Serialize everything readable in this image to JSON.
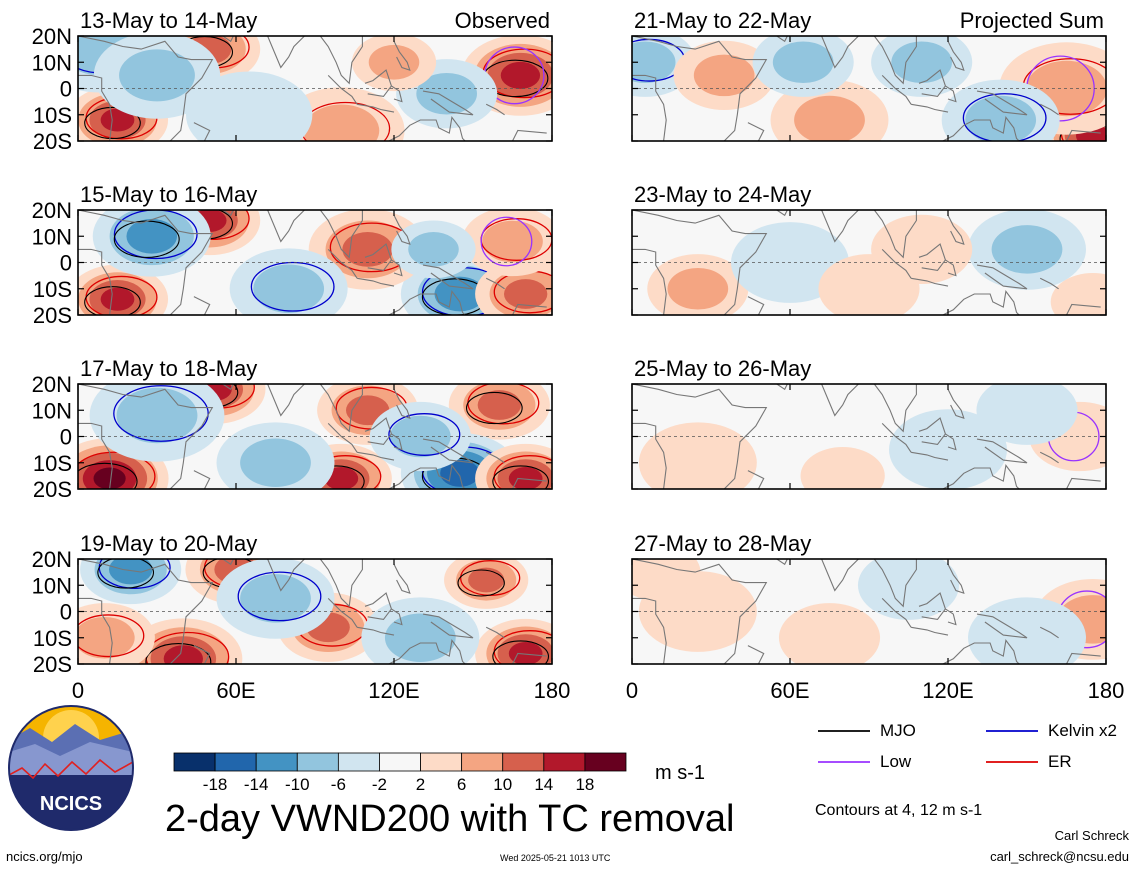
{
  "figure": {
    "title": "2-day VWND200 with TC removal",
    "units": "m s-1",
    "contours_note": "Contours at 4, 12 m s-1",
    "footer_left": "ncics.org/mjo",
    "footer_timestamp": "Wed 2025-05-21 1013 UTC",
    "author_name": "Carl Schreck",
    "author_email": "carl_schreck@ncsu.edu",
    "logo_text": "NCICS"
  },
  "colors": {
    "colorbar": [
      "#08306b",
      "#2166ac",
      "#4393c3",
      "#92c5de",
      "#d1e5f0",
      "#f7f7f7",
      "#fddbc7",
      "#f4a582",
      "#d6604d",
      "#b2182b",
      "#67001f"
    ],
    "mjo": "#000000",
    "kelvin": "#0000cc",
    "low": "#9933ff",
    "er": "#dd0000",
    "land": "#777777",
    "equator": "#555555"
  },
  "chart_data": {
    "type": "heatmap",
    "variable": "VWND200",
    "x_ticks": [
      "0",
      "60E",
      "120E",
      "180"
    ],
    "y_ticks": [
      "20N",
      "10N",
      "0",
      "10S",
      "20S"
    ],
    "xlim": [
      0,
      180
    ],
    "ylim": [
      -20,
      20
    ],
    "colorbar_levels": [
      -18,
      -14,
      -10,
      -6,
      -2,
      2,
      6,
      10,
      14,
      18
    ],
    "colorbar_labels": [
      "-18",
      "-14",
      "-10",
      "-6",
      "-2",
      "2",
      "6",
      "10",
      "14",
      "18"
    ],
    "contour_levels": [
      4,
      12
    ],
    "legend": [
      {
        "label": "MJO",
        "color": "#000000"
      },
      {
        "label": "Kelvin x2",
        "color": "#0000cc"
      },
      {
        "label": "Low",
        "color": "#9933ff"
      },
      {
        "label": "ER",
        "color": "#dd0000"
      }
    ],
    "columns": [
      {
        "header": "Observed",
        "panels": [
          "13-May to 14-May",
          "15-May to 16-May",
          "17-May to 18-May",
          "19-May to 20-May"
        ]
      },
      {
        "header": "Projected Sum",
        "panels": [
          "21-May to 22-May",
          "23-May to 24-May",
          "25-May to 26-May",
          "27-May to 28-May"
        ]
      }
    ],
    "fields": [
      [
        {
          "lon": 15,
          "lat": -12,
          "value": 14,
          "r": 12
        },
        {
          "lon": 50,
          "lat": 15,
          "value": 12,
          "r": 12
        },
        {
          "lon": 8,
          "lat": 15,
          "value": -8,
          "r": 15
        },
        {
          "lon": 100,
          "lat": -16,
          "value": 8,
          "r": 15
        },
        {
          "lon": 168,
          "lat": 5,
          "value": 14,
          "r": 14
        },
        {
          "lon": 140,
          "lat": -2,
          "value": -6,
          "r": 12
        },
        {
          "lon": 30,
          "lat": 5,
          "value": -6,
          "r": 15
        },
        {
          "lon": 120,
          "lat": 10,
          "value": 6,
          "r": 10
        },
        {
          "lon": 65,
          "lat": -10,
          "value": -4,
          "r": 15
        }
      ],
      [
        {
          "lon": 15,
          "lat": -14,
          "value": 16,
          "r": 12
        },
        {
          "lon": 50,
          "lat": 16,
          "value": 16,
          "r": 12
        },
        {
          "lon": 28,
          "lat": 10,
          "value": -12,
          "r": 14
        },
        {
          "lon": 145,
          "lat": -12,
          "value": -12,
          "r": 14
        },
        {
          "lon": 170,
          "lat": -12,
          "value": 10,
          "r": 12
        },
        {
          "lon": 110,
          "lat": 5,
          "value": 10,
          "r": 14
        },
        {
          "lon": 165,
          "lat": 8,
          "value": 8,
          "r": 12
        },
        {
          "lon": 80,
          "lat": -10,
          "value": -8,
          "r": 14
        },
        {
          "lon": 135,
          "lat": 5,
          "value": -6,
          "r": 10
        }
      ],
      [
        {
          "lon": 12,
          "lat": -16,
          "value": 18,
          "r": 14
        },
        {
          "lon": 52,
          "lat": 18,
          "value": 16,
          "r": 12
        },
        {
          "lon": 110,
          "lat": 10,
          "value": 10,
          "r": 12
        },
        {
          "lon": 160,
          "lat": 12,
          "value": 12,
          "r": 12
        },
        {
          "lon": 145,
          "lat": -14,
          "value": -14,
          "r": 14
        },
        {
          "lon": 100,
          "lat": -16,
          "value": 14,
          "r": 12
        },
        {
          "lon": 170,
          "lat": -16,
          "value": 14,
          "r": 12
        },
        {
          "lon": 30,
          "lat": 8,
          "value": -8,
          "r": 16
        },
        {
          "lon": 130,
          "lat": 0,
          "value": -8,
          "r": 12
        },
        {
          "lon": 75,
          "lat": -10,
          "value": -6,
          "r": 14
        }
      ],
      [
        {
          "lon": 40,
          "lat": -18,
          "value": 16,
          "r": 14
        },
        {
          "lon": 20,
          "lat": 16,
          "value": -12,
          "r": 12
        },
        {
          "lon": 60,
          "lat": 16,
          "value": 12,
          "r": 12
        },
        {
          "lon": 155,
          "lat": 12,
          "value": 12,
          "r": 10
        },
        {
          "lon": 170,
          "lat": -16,
          "value": 14,
          "r": 12
        },
        {
          "lon": 95,
          "lat": -6,
          "value": 10,
          "r": 12
        },
        {
          "lon": 130,
          "lat": -10,
          "value": -6,
          "r": 14
        },
        {
          "lon": 75,
          "lat": 5,
          "value": -8,
          "r": 14
        },
        {
          "lon": 10,
          "lat": -10,
          "value": 8,
          "r": 12
        }
      ],
      [
        {
          "lon": 175,
          "lat": -18,
          "value": 14,
          "r": 12
        },
        {
          "lon": 165,
          "lat": 0,
          "value": 8,
          "r": 16
        },
        {
          "lon": 5,
          "lat": 10,
          "value": -8,
          "r": 12
        },
        {
          "lon": 35,
          "lat": 5,
          "value": 6,
          "r": 12
        },
        {
          "lon": 140,
          "lat": -12,
          "value": -8,
          "r": 14
        },
        {
          "lon": 110,
          "lat": 10,
          "value": -6,
          "r": 12
        },
        {
          "lon": 75,
          "lat": -12,
          "value": 6,
          "r": 14
        },
        {
          "lon": 65,
          "lat": 10,
          "value": -6,
          "r": 12
        }
      ],
      [
        {
          "lon": 150,
          "lat": 5,
          "value": -6,
          "r": 14
        },
        {
          "lon": 25,
          "lat": -10,
          "value": 6,
          "r": 12
        },
        {
          "lon": 110,
          "lat": 5,
          "value": 4,
          "r": 12
        },
        {
          "lon": 60,
          "lat": 0,
          "value": -4,
          "r": 14
        },
        {
          "lon": 175,
          "lat": -15,
          "value": 4,
          "r": 10
        },
        {
          "lon": 90,
          "lat": -10,
          "value": 4,
          "r": 12
        }
      ],
      [
        {
          "lon": 120,
          "lat": -5,
          "value": -4,
          "r": 14
        },
        {
          "lon": 25,
          "lat": -10,
          "value": 4,
          "r": 14
        },
        {
          "lon": 170,
          "lat": 0,
          "value": 4,
          "r": 12
        },
        {
          "lon": 80,
          "lat": -15,
          "value": 4,
          "r": 10
        },
        {
          "lon": 150,
          "lat": 10,
          "value": -4,
          "r": 12
        }
      ],
      [
        {
          "lon": 175,
          "lat": -3,
          "value": 6,
          "r": 14
        },
        {
          "lon": 25,
          "lat": 0,
          "value": 4,
          "r": 14
        },
        {
          "lon": 150,
          "lat": -10,
          "value": -4,
          "r": 14
        },
        {
          "lon": 105,
          "lat": 10,
          "value": -4,
          "r": 12
        },
        {
          "lon": 10,
          "lat": 15,
          "value": 4,
          "r": 10
        },
        {
          "lon": 75,
          "lat": -10,
          "value": 4,
          "r": 12
        }
      ]
    ]
  }
}
